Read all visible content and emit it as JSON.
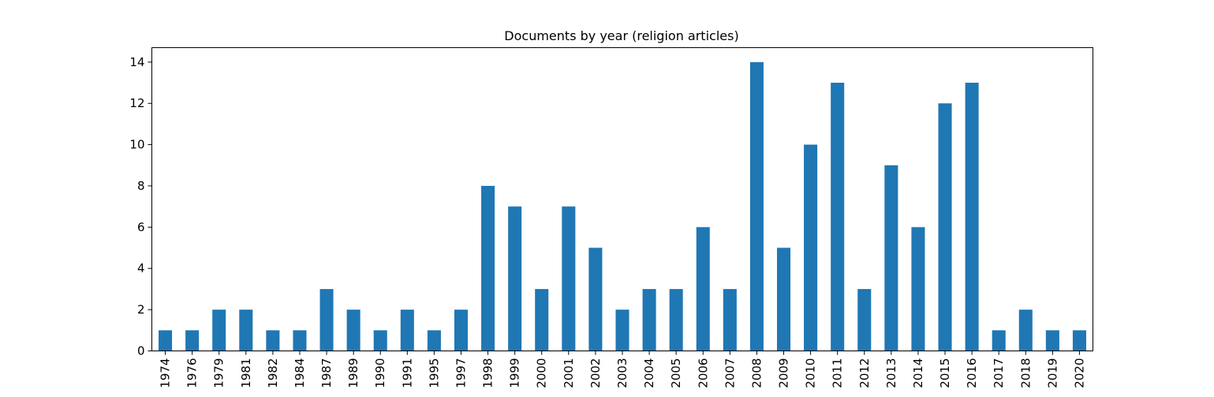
{
  "chart_data": {
    "type": "bar",
    "title": "Documents by year (religion articles)",
    "xlabel": "",
    "ylabel": "",
    "categories": [
      "1974",
      "1976",
      "1979",
      "1981",
      "1982",
      "1984",
      "1987",
      "1989",
      "1990",
      "1991",
      "1995",
      "1997",
      "1998",
      "1999",
      "2000",
      "2001",
      "2002",
      "2003",
      "2004",
      "2005",
      "2006",
      "2007",
      "2008",
      "2009",
      "2010",
      "2011",
      "2012",
      "2013",
      "2014",
      "2015",
      "2016",
      "2017",
      "2018",
      "2019",
      "2020"
    ],
    "values": [
      1,
      1,
      2,
      2,
      1,
      1,
      3,
      2,
      1,
      2,
      1,
      2,
      8,
      7,
      3,
      7,
      5,
      2,
      3,
      3,
      6,
      3,
      14,
      5,
      10,
      13,
      3,
      9,
      6,
      12,
      13,
      1,
      2,
      1,
      1
    ],
    "ylim": [
      0,
      14.7
    ],
    "yticks": [
      0,
      2,
      4,
      6,
      8,
      10,
      12,
      14
    ],
    "bar_color": "#1f77b4",
    "grid": false,
    "legend": "none"
  }
}
